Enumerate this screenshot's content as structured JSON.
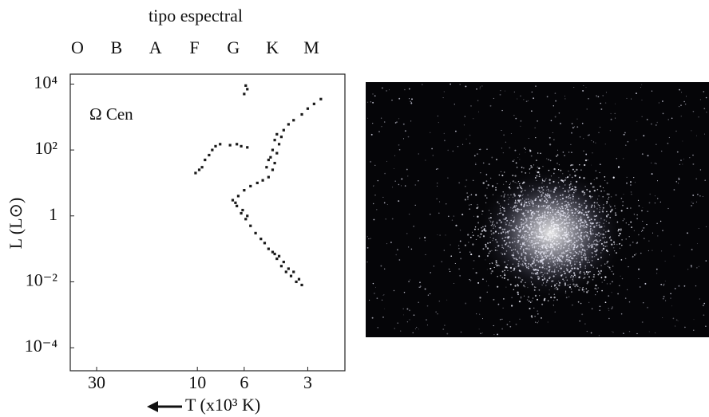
{
  "chart_data": {
    "type": "scatter",
    "top_axis_label": "tipo espectral",
    "top_categories": [
      "O",
      "B",
      "A",
      "F",
      "G",
      "K",
      "M"
    ],
    "annotation": "Ω Cen",
    "annotation_color": "#e01010",
    "x_label": "T (x10³ K)",
    "y_label": "L (L⊙)",
    "x_log": true,
    "y_log": true,
    "x_reversed": true,
    "xlim": [
      40,
      2
    ],
    "xticks": [
      30,
      10,
      6,
      3
    ],
    "ylim": [
      2e-05,
      20000
    ],
    "yticks": [
      {
        "value": 10000,
        "label": "10⁴"
      },
      {
        "value": 100,
        "label": "10²"
      },
      1,
      {
        "value": 0.01,
        "label": "10⁻²"
      },
      {
        "value": 0.0001,
        "label": "10⁻⁴"
      }
    ],
    "color": "#1a1a1a",
    "x": [
      4.2,
      4.0,
      3.8,
      3.6,
      3.4,
      3.3,
      3.5,
      3.9,
      4.4,
      4.6,
      4.8,
      3.7,
      3.2,
      4.1,
      4.3,
      5.0,
      5.3,
      5.6,
      5.9,
      6.2,
      6.5,
      6.8,
      6.4,
      6.0,
      5.6,
      5.2,
      4.9,
      5.8,
      6.1,
      6.6,
      4.6,
      4.4,
      4.3,
      4.5,
      4.2,
      4.4,
      4.1,
      4.3,
      4.0,
      4.2,
      3.9,
      3.7,
      3.5,
      3.2,
      3.0,
      2.8,
      2.6,
      4.6,
      4.7,
      9.5,
      9.2,
      8.8,
      8.5,
      8.2,
      7.8,
      9.8,
      10.2,
      7.0,
      6.5,
      6.2,
      5.8,
      5.9,
      5.8,
      6.0
    ],
    "values": [
      0.05,
      0.03,
      0.02,
      0.015,
      0.01,
      0.012,
      0.02,
      0.04,
      0.08,
      0.1,
      0.15,
      0.025,
      0.008,
      0.06,
      0.07,
      0.2,
      0.3,
      0.5,
      0.8,
      1.2,
      2,
      3,
      4,
      6,
      8,
      10,
      12,
      1,
      1.5,
      2.5,
      15,
      25,
      40,
      60,
      80,
      100,
      150,
      200,
      250,
      300,
      400,
      600,
      800,
      1200,
      1800,
      2500,
      3500,
      50,
      30,
      30,
      50,
      70,
      100,
      130,
      150,
      25,
      20,
      140,
      150,
      130,
      120,
      9000,
      7000,
      5000
    ]
  }
}
